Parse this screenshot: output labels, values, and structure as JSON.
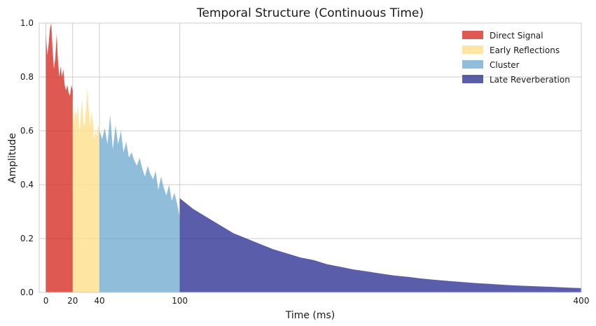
{
  "chart_data": {
    "type": "area",
    "title": "Temporal Structure (Continuous Time)",
    "xlabel": "Time (ms)",
    "ylabel": "Amplitude",
    "xlim": [
      -5,
      400
    ],
    "ylim": [
      0,
      1.0
    ],
    "xticks": [
      0,
      20,
      40,
      100,
      400
    ],
    "yticks": [
      0.0,
      0.2,
      0.4,
      0.6,
      0.8,
      1.0
    ],
    "xtick_labels": [
      "0",
      "20",
      "40",
      "100",
      "400"
    ],
    "ytick_labels": [
      "0.0",
      "0.2",
      "0.4",
      "0.6",
      "0.8",
      "1.0"
    ],
    "grid": true,
    "legend_position": "top-right",
    "series": [
      {
        "name": "Direct Signal",
        "color": "#d62f26",
        "x": [
          0,
          1,
          2,
          3,
          4,
          5,
          6,
          7,
          8,
          9,
          10,
          11,
          12,
          13,
          14,
          15,
          16,
          17,
          18,
          19,
          20
        ],
        "y": [
          0.96,
          0.88,
          0.92,
          0.98,
          1.0,
          0.9,
          0.83,
          0.87,
          0.96,
          0.86,
          0.8,
          0.84,
          0.8,
          0.83,
          0.77,
          0.75,
          0.77,
          0.74,
          0.73,
          0.77,
          0.75
        ]
      },
      {
        "name": "Early Reflections",
        "color": "#fee08b",
        "x": [
          20,
          21,
          22,
          23,
          24,
          25,
          26,
          27,
          28,
          29,
          30,
          31,
          32,
          33,
          34,
          35,
          36,
          37,
          38,
          39,
          40
        ],
        "y": [
          0.72,
          0.62,
          0.68,
          0.65,
          0.7,
          0.58,
          0.66,
          0.72,
          0.63,
          0.62,
          0.69,
          0.76,
          0.68,
          0.62,
          0.67,
          0.64,
          0.57,
          0.6,
          0.58,
          0.62,
          0.6
        ]
      },
      {
        "name": "Cluster",
        "color": "#74add1",
        "x": [
          40,
          42,
          44,
          46,
          48,
          50,
          52,
          54,
          56,
          58,
          60,
          62,
          64,
          66,
          68,
          70,
          72,
          74,
          76,
          78,
          80,
          82,
          84,
          86,
          88,
          90,
          92,
          94,
          96,
          98,
          100
        ],
        "y": [
          0.6,
          0.57,
          0.61,
          0.55,
          0.66,
          0.53,
          0.62,
          0.55,
          0.6,
          0.52,
          0.56,
          0.5,
          0.52,
          0.49,
          0.47,
          0.5,
          0.46,
          0.43,
          0.47,
          0.44,
          0.42,
          0.45,
          0.38,
          0.43,
          0.39,
          0.36,
          0.4,
          0.34,
          0.37,
          0.33,
          0.28
        ]
      },
      {
        "name": "Late Reverberation",
        "color": "#313695",
        "x": [
          100,
          110,
          120,
          130,
          140,
          150,
          160,
          170,
          180,
          190,
          200,
          210,
          220,
          230,
          240,
          250,
          260,
          270,
          280,
          290,
          300,
          310,
          320,
          330,
          340,
          350,
          360,
          370,
          380,
          390,
          400
        ],
        "y": [
          0.35,
          0.31,
          0.28,
          0.25,
          0.22,
          0.2,
          0.18,
          0.16,
          0.145,
          0.13,
          0.12,
          0.105,
          0.095,
          0.085,
          0.078,
          0.07,
          0.063,
          0.058,
          0.052,
          0.047,
          0.043,
          0.039,
          0.035,
          0.032,
          0.029,
          0.026,
          0.024,
          0.022,
          0.02,
          0.018,
          0.016
        ]
      }
    ]
  }
}
